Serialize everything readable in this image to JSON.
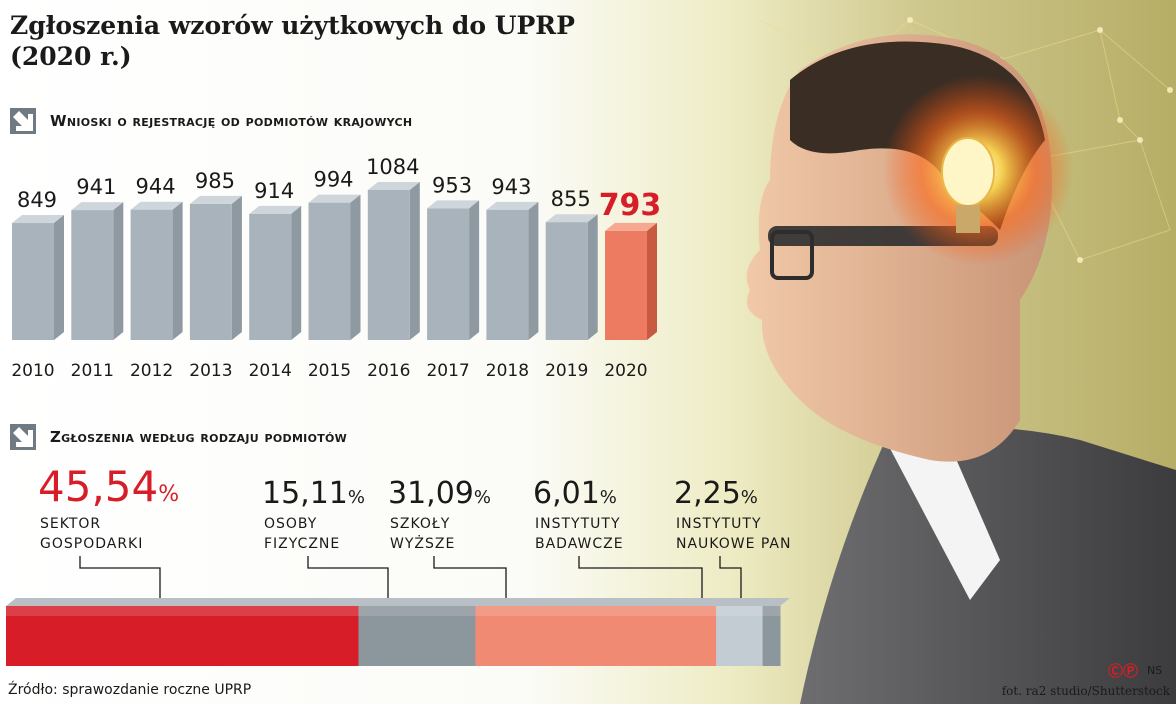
{
  "title": "Zgłoszenia wzorów użytkowych do UPRP (2020 r.)",
  "section1_title": "Wnioski o rejestrację od podmiotów krajowych",
  "section2_title": "Zgłoszenia według rodzaju podmiotów",
  "source": "Źródło: sprawozdanie roczne UPRP",
  "photo_credit": "fot. ra2 studio/Shutterstock",
  "logo": {
    "mark": "ⒸⓅ",
    "initials": "NS"
  },
  "colors": {
    "highlight": "#d71e28",
    "bar_gray": "#a9b3bb",
    "bar_highlight": "#ec7b62",
    "salmon": "#f08a73",
    "light_gray": "#c3ccd2",
    "dark_gray": "#8c969d"
  },
  "chart_data": [
    {
      "type": "bar",
      "categories": [
        "2010",
        "2011",
        "2012",
        "2013",
        "2014",
        "2015",
        "2016",
        "2017",
        "2018",
        "2019",
        "2020"
      ],
      "values": [
        849,
        941,
        944,
        985,
        914,
        994,
        1084,
        953,
        943,
        855,
        793
      ],
      "title": "Wnioski o rejestrację od podmiotów krajowych",
      "highlight_category": "2020"
    },
    {
      "type": "bar",
      "orientation": "stacked-horizontal",
      "title": "Zgłoszenia według rodzaju podmiotów",
      "segments": [
        {
          "value": 45.54,
          "value_label": "45,54",
          "lines": [
            "SEKTOR",
            "GOSPODARKI"
          ],
          "color": "#d71e28"
        },
        {
          "value": 15.11,
          "value_label": "15,11",
          "lines": [
            "OSOBY",
            "FIZYCZNE"
          ],
          "color": "#8c969d"
        },
        {
          "value": 31.09,
          "value_label": "31,09",
          "lines": [
            "SZKOŁY",
            "WYŻSZE"
          ],
          "color": "#f08a73"
        },
        {
          "value": 6.01,
          "value_label": "6,01",
          "lines": [
            "INSTYTUTY",
            "BADAWCZE"
          ],
          "color": "#c3ccd2"
        },
        {
          "value": 2.25,
          "value_label": "2,25",
          "lines": [
            "INSTYTUTY",
            "NAUKOWE PAN"
          ],
          "color": "#8c969d"
        }
      ],
      "unit": "%"
    }
  ]
}
